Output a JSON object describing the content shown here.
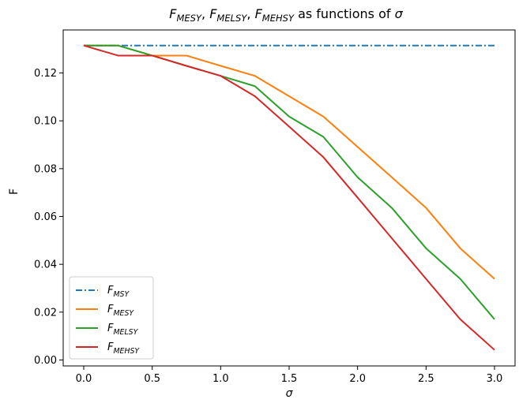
{
  "chart_data": {
    "type": "line",
    "title": {
      "segments": [
        {
          "main": "F",
          "sub": "MESY",
          "italic": true
        },
        {
          "text": ", "
        },
        {
          "main": "F",
          "sub": "MELSY",
          "italic": true
        },
        {
          "text": ", "
        },
        {
          "main": "F",
          "sub": "MEHSY",
          "italic": true
        },
        {
          "text": " as functions of "
        },
        {
          "main": "σ",
          "italic": true
        }
      ]
    },
    "xlabel": "σ",
    "ylabel": "F",
    "xlim": [
      -0.15,
      3.15
    ],
    "ylim": [
      -0.0025,
      0.138
    ],
    "x_ticks": [
      0.0,
      0.5,
      1.0,
      1.5,
      2.0,
      2.5,
      3.0
    ],
    "x_tick_labels": [
      "0.0",
      "0.5",
      "1.0",
      "1.5",
      "2.0",
      "2.5",
      "3.0"
    ],
    "y_ticks": [
      0.0,
      0.02,
      0.04,
      0.06,
      0.08,
      0.1,
      0.12
    ],
    "y_tick_labels": [
      "0.00",
      "0.02",
      "0.04",
      "0.06",
      "0.08",
      "0.10",
      "0.12"
    ],
    "grid": false,
    "legend": "lower-left",
    "x": [
      0.0,
      0.25,
      0.5,
      0.75,
      1.0,
      1.25,
      1.5,
      1.75,
      2.0,
      2.25,
      2.5,
      2.75,
      3.0
    ],
    "series": [
      {
        "name": "F",
        "name_sub": "MSY",
        "color": "#1f77b4",
        "dash": "dashdot",
        "values": [
          0.1315,
          0.1315,
          0.1315,
          0.1315,
          0.1315,
          0.1315,
          0.1315,
          0.1315,
          0.1315,
          0.1315,
          0.1315,
          0.1315,
          0.1315
        ]
      },
      {
        "name": "F",
        "name_sub": "MESY",
        "color": "#ff7f0e",
        "dash": "solid",
        "values": [
          0.1315,
          0.1315,
          0.1273,
          0.1273,
          0.123,
          0.1188,
          0.1103,
          0.1018,
          0.0891,
          0.0764,
          0.0636,
          0.0467,
          0.0339
        ]
      },
      {
        "name": "F",
        "name_sub": "MELSY",
        "color": "#2ca02c",
        "dash": "solid",
        "values": [
          0.1315,
          0.1315,
          0.1273,
          0.123,
          0.1188,
          0.1145,
          0.1018,
          0.0933,
          0.0764,
          0.0636,
          0.0467,
          0.0339,
          0.017
        ]
      },
      {
        "name": "F",
        "name_sub": "MEHSY",
        "color": "#d62728",
        "dash": "solid",
        "values": [
          0.1315,
          0.1273,
          0.1273,
          0.123,
          0.1188,
          0.1103,
          0.0976,
          0.0848,
          0.0679,
          0.0509,
          0.0339,
          0.017,
          0.0042
        ]
      }
    ]
  }
}
